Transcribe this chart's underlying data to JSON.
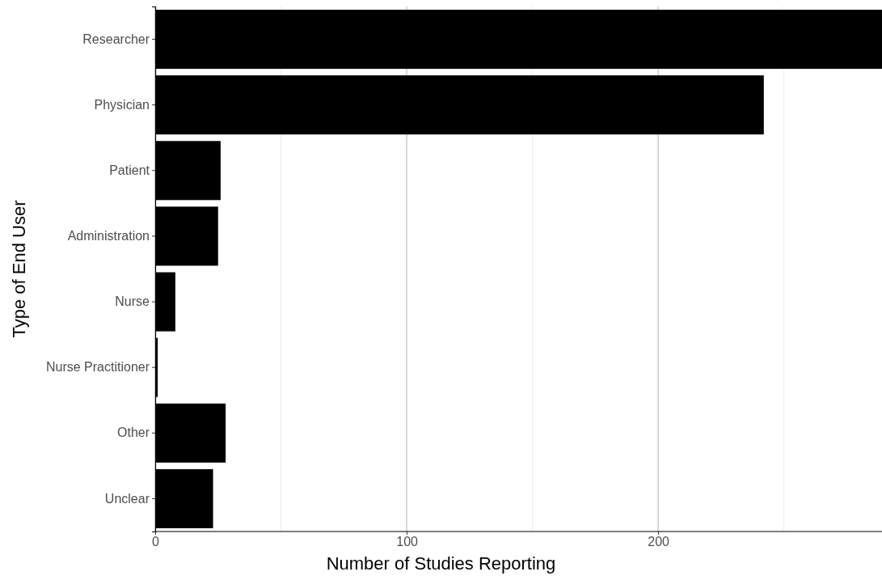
{
  "chart_data": {
    "type": "bar",
    "orientation": "horizontal",
    "xlabel": "Number of Studies Reporting",
    "ylabel": "Type of End User",
    "categories": [
      "Researcher",
      "Physician",
      "Patient",
      "Administration",
      "Nurse",
      "Nurse Practitioner",
      "Other",
      "Unclear"
    ],
    "values": [
      289,
      242,
      26,
      25,
      8,
      1,
      28,
      23
    ],
    "color": "#000000",
    "xlim": [
      0,
      289
    ],
    "xticks": [
      0,
      {
        "value": 50,
        "label": null
      },
      100,
      {
        "value": 150,
        "label": null
      },
      200,
      {
        "value": 250,
        "label": null
      }
    ],
    "grid": "x"
  }
}
